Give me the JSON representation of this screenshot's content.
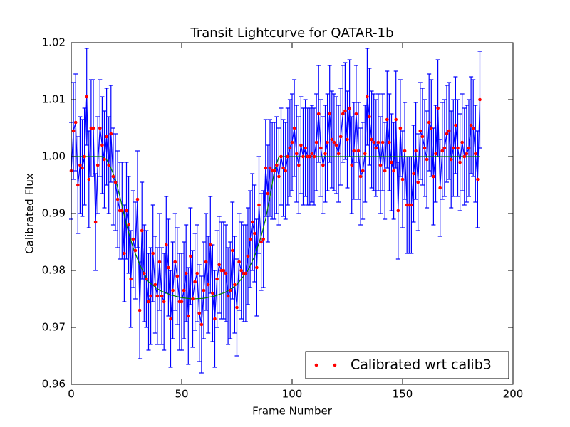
{
  "chart_data": {
    "type": "errorbar",
    "title": "Transit Lightcurve for QATAR-1b",
    "xlabel": "Frame Number",
    "ylabel": "Calibrated Flux",
    "xlim": [
      0,
      200
    ],
    "xticks": [
      0,
      50,
      100,
      150,
      200
    ],
    "ylim": [
      0.96,
      1.02
    ],
    "yticks": [
      0.96,
      0.97,
      0.98,
      0.99,
      {
        "value": 1.0,
        "label": "1.00"
      },
      1.01,
      1.02
    ],
    "legend": "lower right",
    "series": [
      {
        "name": "Calibrated wrt calib3",
        "color": "#ff0000",
        "line_color": "#0000ff",
        "error": 0.0085,
        "x": [
          0,
          1,
          2,
          3,
          4,
          5,
          6,
          7,
          8,
          9,
          10,
          11,
          12,
          13,
          14,
          15,
          16,
          17,
          18,
          19,
          20,
          21,
          22,
          23,
          24,
          25,
          26,
          27,
          28,
          29,
          30,
          31,
          32,
          33,
          34,
          35,
          36,
          37,
          38,
          39,
          40,
          41,
          42,
          43,
          44,
          45,
          46,
          47,
          48,
          49,
          50,
          51,
          52,
          53,
          54,
          55,
          56,
          57,
          58,
          59,
          60,
          61,
          62,
          63,
          64,
          65,
          66,
          67,
          68,
          69,
          70,
          71,
          72,
          73,
          74,
          75,
          76,
          77,
          78,
          79,
          80,
          81,
          82,
          83,
          84,
          85,
          86,
          87,
          88,
          89,
          90,
          91,
          92,
          93,
          94,
          95,
          96,
          97,
          98,
          99,
          100,
          101,
          102,
          103,
          104,
          105,
          106,
          107,
          108,
          109,
          110,
          111,
          112,
          113,
          114,
          115,
          116,
          117,
          118,
          119,
          120,
          121,
          122,
          123,
          124,
          125,
          126,
          127,
          128,
          129,
          130,
          131,
          132,
          133,
          134,
          135,
          136,
          137,
          138,
          139,
          140,
          141,
          142,
          143,
          144,
          145,
          146,
          147,
          148,
          149,
          150,
          151,
          152,
          153,
          154,
          155,
          156,
          157,
          158,
          159,
          160,
          161,
          162,
          163,
          164,
          165,
          166,
          167,
          168,
          169,
          170,
          171,
          172,
          173,
          174,
          175,
          176,
          177,
          178,
          179,
          180,
          181,
          182,
          183,
          184,
          185
        ],
        "values": [
          0.9975,
          1.0045,
          1.006,
          0.995,
          0.9985,
          0.998,
          1.0,
          1.0105,
          0.996,
          1.005,
          1.005,
          0.9885,
          0.9985,
          1.005,
          1.002,
          0.9995,
          1.0035,
          0.9985,
          1.004,
          0.9965,
          0.9955,
          0.9925,
          0.9905,
          0.9905,
          0.983,
          0.9905,
          0.988,
          0.9785,
          0.9855,
          0.9835,
          0.9925,
          0.973,
          0.987,
          0.9795,
          0.9785,
          0.9745,
          0.9755,
          0.983,
          0.9775,
          0.9755,
          0.9815,
          0.9755,
          0.9745,
          0.9845,
          0.9805,
          0.9715,
          0.9765,
          0.9815,
          0.979,
          0.9745,
          0.9745,
          0.9765,
          0.9795,
          0.972,
          0.9825,
          0.975,
          0.978,
          0.9795,
          0.9725,
          0.9705,
          0.9765,
          0.9815,
          0.9775,
          0.9845,
          0.976,
          0.9715,
          0.9785,
          0.981,
          0.98,
          0.98,
          0.9795,
          0.9755,
          0.9765,
          0.9835,
          0.9775,
          0.9735,
          0.9815,
          0.98,
          0.9795,
          0.9795,
          0.9825,
          0.9855,
          0.9885,
          0.9865,
          0.9805,
          0.9915,
          0.985,
          0.9855,
          0.998,
          0.9935,
          0.998,
          0.9975,
          0.9975,
          0.9985,
          0.9965,
          1.0,
          0.998,
          0.9975,
          1.0,
          1.0015,
          1.0025,
          1.005,
          1.0005,
          0.9985,
          1.002,
          1.0,
          1.0015,
          1.0,
          1.0,
          1.0005,
          1.0,
          1.0025,
          1.0075,
          1.0015,
          0.9985,
          1.0005,
          1.0025,
          1.0075,
          1.003,
          1.0025,
          1.002,
          1.0005,
          1.0035,
          1.0075,
          1.008,
          1.003,
          1.0085,
          0.9985,
          1.001,
          1.0075,
          1.001,
          0.9965,
          0.9975,
          1.0005,
          1.0105,
          1.007,
          1.003,
          1.0025,
          1.0015,
          1.0025,
          0.9985,
          1.0025,
          0.9975,
          1.0065,
          1.0025,
          0.999,
          0.9975,
          1.0065,
          0.9905,
          1.005,
          0.996,
          1.001,
          0.9915,
          0.9915,
          0.9915,
          0.997,
          1.001,
          0.9955,
          1.0045,
          1.0035,
          1.0015,
          0.9995,
          1.006,
          1.005,
          0.9965,
          1.0005,
          1.0085,
          0.9945,
          1.001,
          1.0015,
          1.004,
          1.0045,
          0.9995,
          1.0015,
          1.0055,
          1.0015,
          0.999,
          1.0025,
          1.0,
          1.0005,
          1.0015,
          1.0055,
          1.005,
          1.0005,
          0.996,
          1.01
        ]
      },
      {
        "color": "#008000",
        "x": [
          0,
          14,
          16,
          18,
          20,
          22,
          25,
          28,
          31,
          35,
          40,
          45,
          50,
          55,
          60,
          65,
          70,
          75,
          80,
          83,
          86,
          88,
          90,
          92,
          94,
          185
        ],
        "values": [
          1.0,
          1.0,
          0.9995,
          0.998,
          0.996,
          0.993,
          0.988,
          0.984,
          0.981,
          0.978,
          0.9765,
          0.9757,
          0.9752,
          0.975,
          0.9751,
          0.9755,
          0.9762,
          0.9775,
          0.98,
          0.9825,
          0.986,
          0.989,
          0.993,
          0.9975,
          1.0,
          1.0
        ]
      }
    ]
  }
}
